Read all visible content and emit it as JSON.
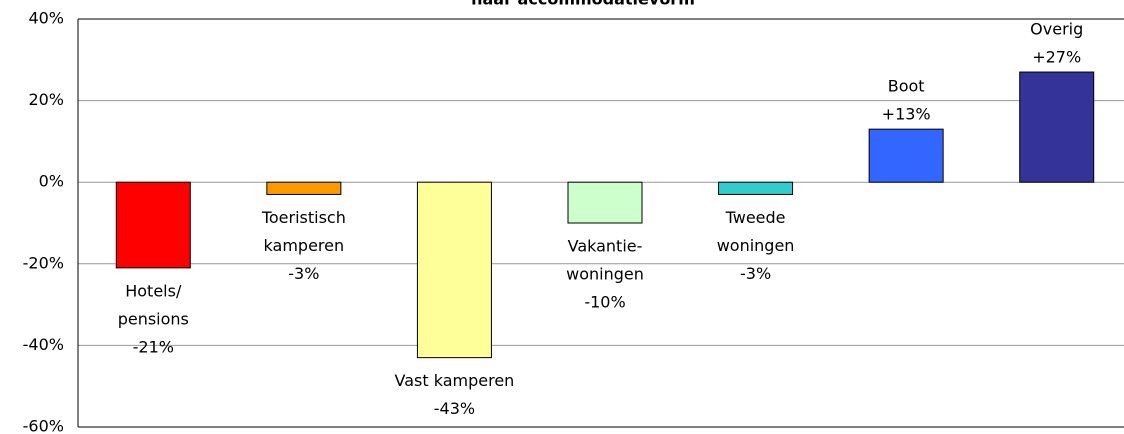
{
  "chart_data": {
    "type": "bar",
    "title": "naar accommodatievorm",
    "categories": [
      [
        "Hotels/",
        "pensions"
      ],
      [
        "Toeristisch",
        "kamperen"
      ],
      [
        "Vast kamperen"
      ],
      [
        "Vakantie-",
        "woningen"
      ],
      [
        "Tweede",
        "woningen"
      ],
      [
        "Boot"
      ],
      [
        "Overig"
      ]
    ],
    "values": [
      -21,
      -3,
      -43,
      -10,
      -3,
      13,
      27
    ],
    "value_labels": [
      "-21%",
      "-3%",
      "-43%",
      "-10%",
      "-3%",
      "+13%",
      "+27%"
    ],
    "colors": [
      "#ff0000",
      "#ff9900",
      "#ffff99",
      "#ccffcc",
      "#33cccc",
      "#3366ff",
      "#333399"
    ],
    "ylim": [
      -60,
      40
    ],
    "yticks": [
      {
        "value": -60,
        "label": "-60%"
      },
      {
        "value": -40,
        "label": "-40%"
      },
      {
        "value": -20,
        "label": "-20%"
      },
      {
        "value": 0,
        "label": "0%"
      },
      {
        "value": 20,
        "label": "20%"
      },
      {
        "value": 40,
        "label": "40%"
      }
    ],
    "grid": true
  }
}
